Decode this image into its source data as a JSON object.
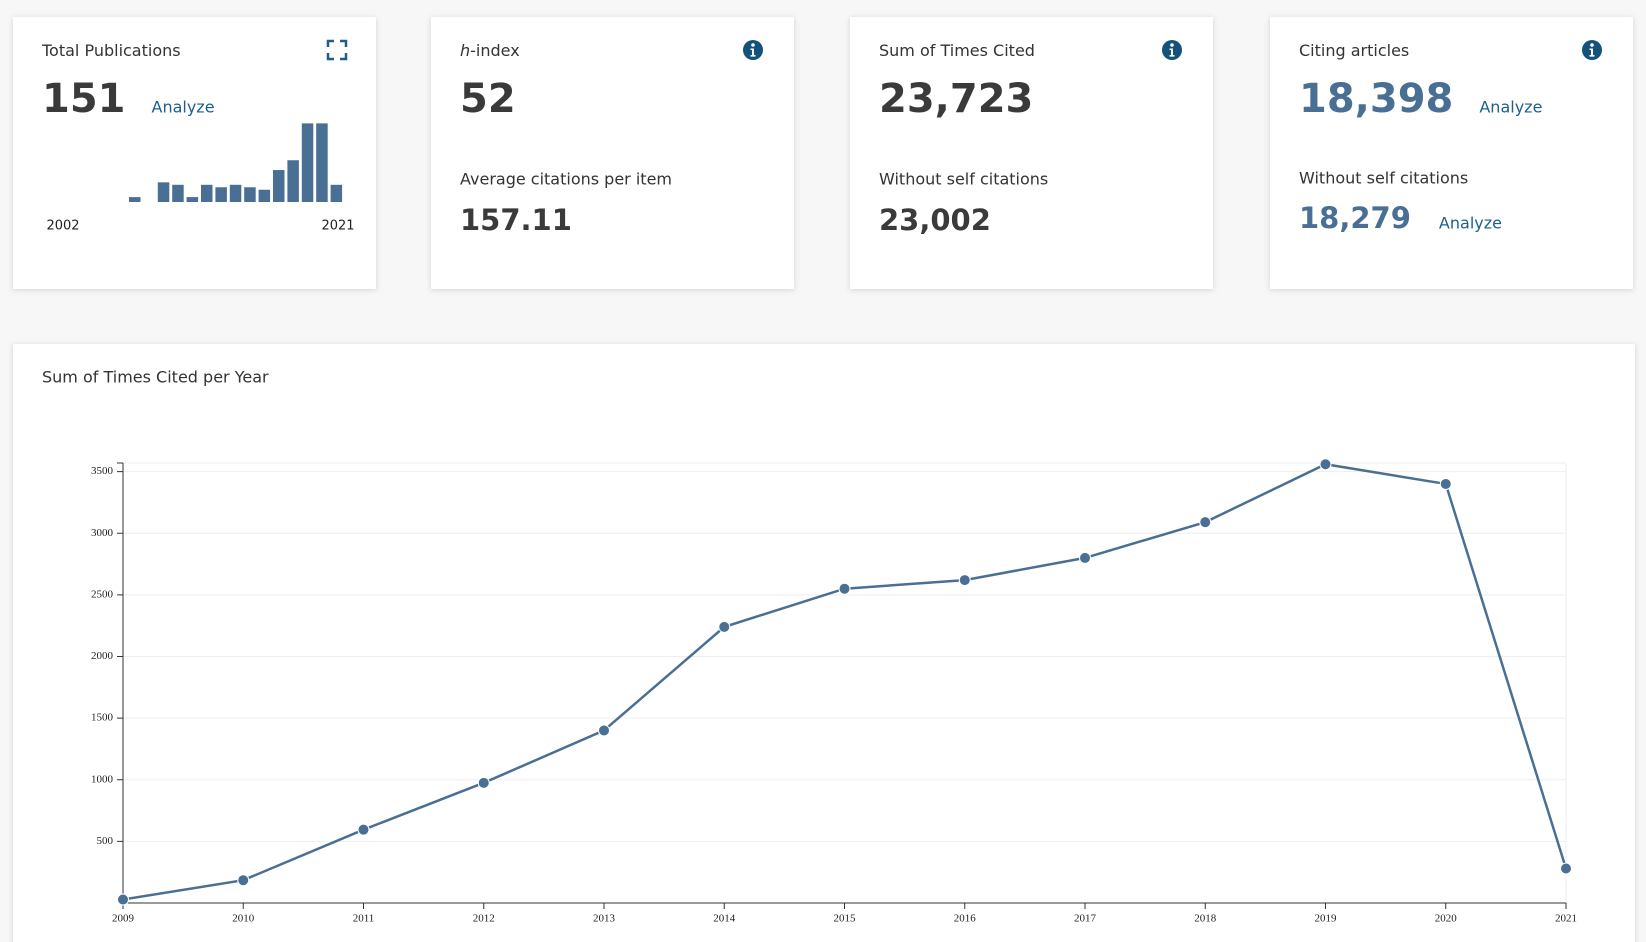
{
  "cards": [
    {
      "title": "Total Publications",
      "value": "151",
      "link": "Analyze"
    },
    {
      "title_italic": "h",
      "title": "-index",
      "value": "52",
      "sub_title": "Average citations per item",
      "sub_value": "157.11"
    },
    {
      "title": "Sum of Times Cited",
      "value": "23,723",
      "sub_title": "Without self citations",
      "sub_value": "23,002"
    },
    {
      "title": "Citing articles",
      "value": "18,398",
      "link": "Analyze",
      "sub_title": "Without self citations",
      "sub_value": "18,279",
      "sub_link": "Analyze"
    }
  ],
  "chart_data": [
    {
      "type": "bar",
      "x_labels": [
        "2002",
        "2021"
      ],
      "values": [
        2,
        0,
        8,
        7,
        2,
        7,
        6,
        7,
        6,
        5,
        13,
        17,
        32,
        32,
        7
      ],
      "ylim": [
        0,
        35
      ],
      "color": "#4a6f94"
    },
    {
      "type": "line",
      "title": "Sum of Times Cited per Year",
      "x": [
        2009,
        2010,
        2011,
        2012,
        2013,
        2014,
        2015,
        2016,
        2017,
        2018,
        2019,
        2020,
        2021
      ],
      "series": [
        {
          "color": "#4a6f94",
          "values": [
            28,
            185,
            595,
            975,
            1400,
            2240,
            2550,
            2620,
            2800,
            3090,
            3560,
            3400,
            280
          ]
        }
      ],
      "xlim": [
        2009,
        2021
      ],
      "xticks": [
        2009,
        2010,
        2011,
        2012,
        2013,
        2014,
        2015,
        2016,
        2017,
        2018,
        2019,
        2020,
        2021
      ],
      "ylim": [
        0,
        3570
      ],
      "yticks": [
        500,
        1000,
        1500,
        2000,
        2500,
        3000,
        3500
      ],
      "grid": true
    }
  ]
}
